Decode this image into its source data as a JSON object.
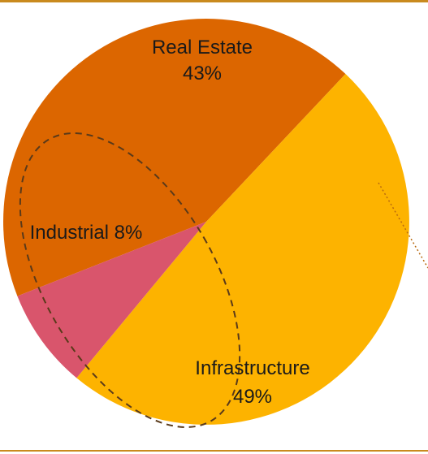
{
  "chart_data": {
    "type": "pie",
    "title": "",
    "slices": [
      {
        "label": "Real Estate",
        "value": 43,
        "percent_text": "43%",
        "color": "#DC6600"
      },
      {
        "label": "Infrastructure",
        "value": 49,
        "percent_text": "49%",
        "color": "#FDB300"
      },
      {
        "label": "Industrial",
        "value": 8,
        "percent_text": "8%",
        "color": "#D9556C"
      }
    ],
    "legend": "none",
    "data_labels": "inside"
  },
  "colors": {
    "frame_rule": "#C98A1E",
    "overlay_outline": "#5A3A1A",
    "label_text": "#1A1A1A"
  }
}
